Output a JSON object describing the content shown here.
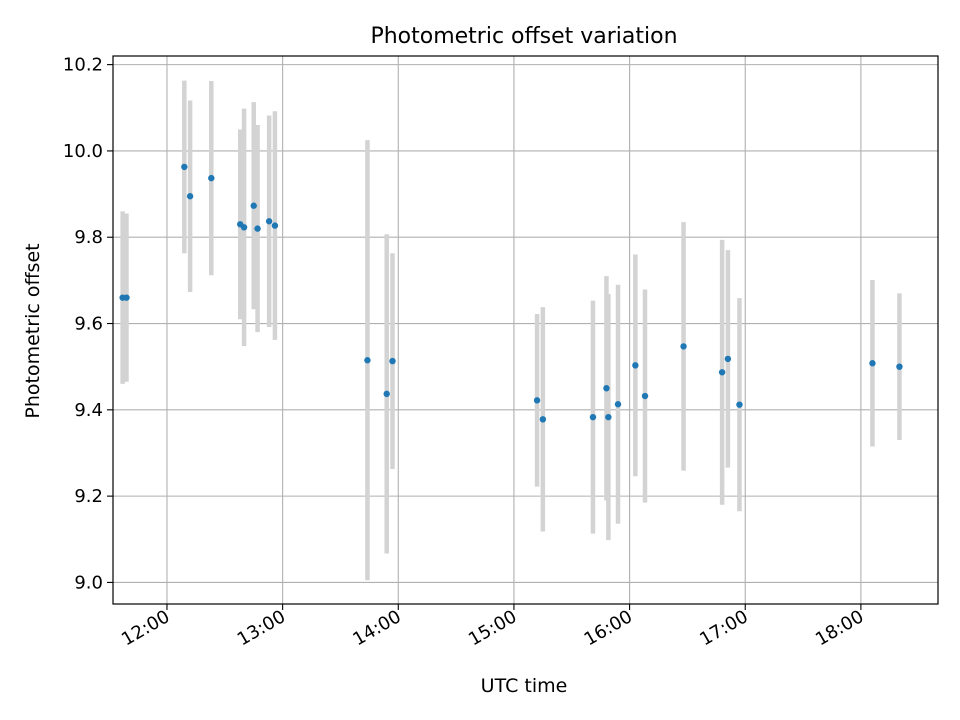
{
  "chart_data": {
    "type": "scatter",
    "title": "Photometric offset variation",
    "xlabel": "UTC time",
    "ylabel": "Photometric offset",
    "xlim": [
      "11:32",
      "18:40"
    ],
    "ylim": [
      8.95,
      10.22
    ],
    "x_ticks": [
      "12:00",
      "13:00",
      "14:00",
      "15:00",
      "16:00",
      "17:00",
      "18:00"
    ],
    "y_ticks": [
      "9.0",
      "9.2",
      "9.4",
      "9.6",
      "9.8",
      "10.0",
      "10.2"
    ],
    "grid": true,
    "colors": {
      "points": "#1f77b4",
      "errorbars": "#d3d3d3",
      "grid": "#b0b0b0"
    },
    "series": [
      {
        "points": [
          {
            "x": "11:37",
            "y": 9.66,
            "err": 0.2
          },
          {
            "x": "11:39",
            "y": 9.66,
            "err": 0.195
          },
          {
            "x": "12:09",
            "y": 9.963,
            "err": 0.2
          },
          {
            "x": "12:12",
            "y": 9.895,
            "err": 0.222
          },
          {
            "x": "12:23",
            "y": 9.937,
            "err": 0.225
          },
          {
            "x": "12:38",
            "y": 9.83,
            "err": 0.22
          },
          {
            "x": "12:40",
            "y": 9.823,
            "err": 0.275
          },
          {
            "x": "12:45",
            "y": 9.873,
            "err": 0.24
          },
          {
            "x": "12:47",
            "y": 9.82,
            "err": 0.24
          },
          {
            "x": "12:53",
            "y": 9.837,
            "err": 0.245
          },
          {
            "x": "12:56",
            "y": 9.827,
            "err": 0.265
          },
          {
            "x": "13:44",
            "y": 9.515,
            "err": 0.51
          },
          {
            "x": "13:54",
            "y": 9.437,
            "err": 0.37
          },
          {
            "x": "13:57",
            "y": 9.513,
            "err": 0.25
          },
          {
            "x": "15:12",
            "y": 9.422,
            "err": 0.2
          },
          {
            "x": "15:15",
            "y": 9.378,
            "err": 0.26
          },
          {
            "x": "15:41",
            "y": 9.383,
            "err": 0.27
          },
          {
            "x": "15:48",
            "y": 9.45,
            "err": 0.26
          },
          {
            "x": "15:49",
            "y": 9.383,
            "err": 0.285
          },
          {
            "x": "15:54",
            "y": 9.413,
            "err": 0.277
          },
          {
            "x": "16:03",
            "y": 9.503,
            "err": 0.257
          },
          {
            "x": "16:08",
            "y": 9.432,
            "err": 0.247
          },
          {
            "x": "16:28",
            "y": 9.547,
            "err": 0.288
          },
          {
            "x": "16:48",
            "y": 9.487,
            "err": 0.307
          },
          {
            "x": "16:51",
            "y": 9.518,
            "err": 0.252
          },
          {
            "x": "16:57",
            "y": 9.412,
            "err": 0.247
          },
          {
            "x": "18:06",
            "y": 9.508,
            "err": 0.193
          },
          {
            "x": "18:20",
            "y": 9.5,
            "err": 0.17
          }
        ]
      }
    ]
  }
}
